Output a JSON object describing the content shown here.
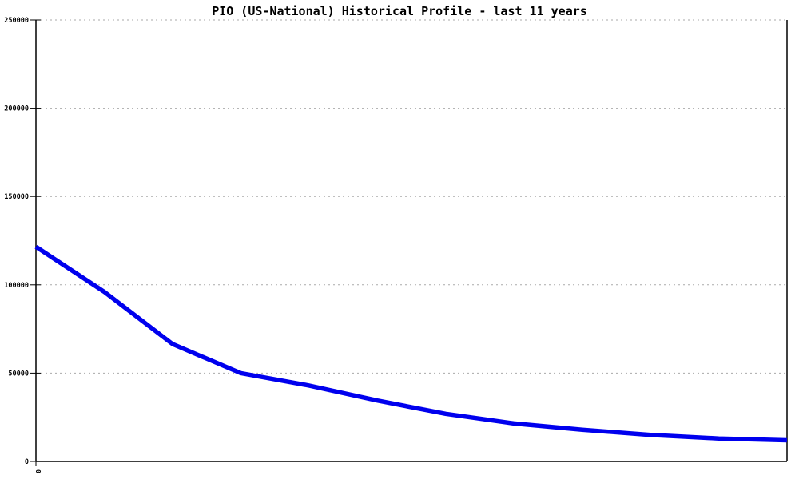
{
  "chart_data": {
    "type": "line",
    "title": "PIO (US-National) Historical Profile - last 11 years",
    "xlabel": "",
    "ylabel": "",
    "x": [
      0,
      1,
      2,
      3,
      4,
      5,
      6,
      7,
      8,
      9,
      10,
      11
    ],
    "x_first_tick_label": "0",
    "series": [
      {
        "name": "PIO",
        "values": [
          121500,
          96000,
          66500,
          50000,
          43000,
          34500,
          27000,
          21500,
          18000,
          15000,
          13000,
          12000
        ]
      }
    ],
    "ylim": [
      0,
      250000
    ],
    "yticks": [
      0,
      50000,
      100000,
      150000,
      200000,
      250000
    ],
    "grid": "horizontal dotted gridlines at each y tick",
    "legend": "none"
  },
  "colors": {
    "line": "#0000ee",
    "axis": "#000000",
    "grid": "#aaaaaa",
    "background": "#ffffff",
    "text": "#000000"
  },
  "layout_note": "single line chart, no legend, frame on left/bottom/right"
}
